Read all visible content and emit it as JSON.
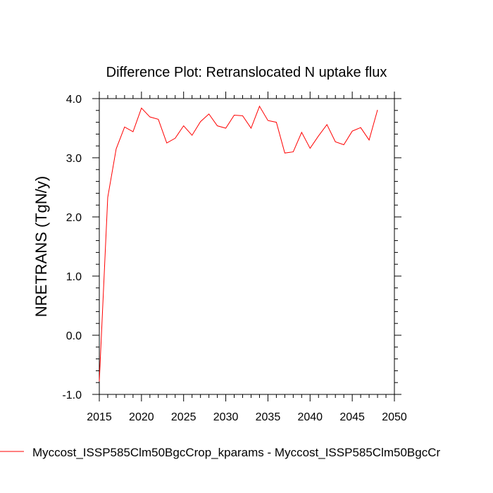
{
  "chart_data": {
    "type": "line",
    "title": "Difference Plot: Retranslocated N uptake flux",
    "xlabel": "",
    "ylabel": "NRETRANS  (TgN/y)",
    "xlim": [
      2015,
      2050
    ],
    "ylim": [
      -1.0,
      4.0
    ],
    "xticks": [
      2015,
      2020,
      2025,
      2030,
      2035,
      2040,
      2045,
      2050
    ],
    "xtick_labels": [
      "2015",
      "2020",
      "2025",
      "2030",
      "2035",
      "2040",
      "2045",
      "2050"
    ],
    "yticks": [
      -1.0,
      0.0,
      1.0,
      2.0,
      3.0,
      4.0
    ],
    "ytick_labels": [
      "-1.0",
      "0.0",
      "1.0",
      "2.0",
      "3.0",
      "4.0"
    ],
    "grid": false,
    "legend_placement": "bottom",
    "series": [
      {
        "name": "Myccost_ISSP585Clm50BgcCrop_kparams - Myccost_ISSP585Clm50BgcCr",
        "color": "#ff0000",
        "x": [
          2015,
          2016,
          2017,
          2018,
          2019,
          2020,
          2021,
          2022,
          2023,
          2024,
          2025,
          2026,
          2027,
          2028,
          2029,
          2030,
          2031,
          2032,
          2033,
          2034,
          2035,
          2036,
          2037,
          2038,
          2039,
          2040,
          2041,
          2042,
          2043,
          2044,
          2045,
          2046,
          2047,
          2048
        ],
        "values": [
          -0.78,
          2.33,
          3.15,
          3.52,
          3.44,
          3.84,
          3.69,
          3.65,
          3.25,
          3.33,
          3.54,
          3.38,
          3.61,
          3.74,
          3.54,
          3.5,
          3.72,
          3.71,
          3.5,
          3.87,
          3.63,
          3.6,
          3.08,
          3.1,
          3.43,
          3.16,
          3.37,
          3.56,
          3.27,
          3.22,
          3.45,
          3.51,
          3.3,
          3.81
        ]
      }
    ]
  }
}
